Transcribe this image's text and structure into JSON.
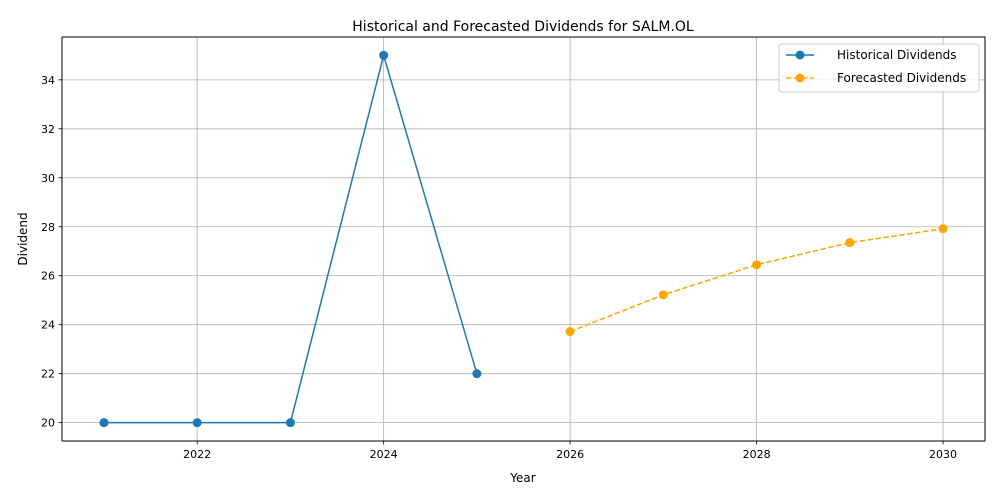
{
  "chart_data": {
    "type": "line",
    "title": "Historical and Forecasted Dividends for SALM.OL",
    "xlabel": "Year",
    "ylabel": "Dividend",
    "xlim": [
      2020.55,
      2030.45
    ],
    "ylim": [
      19.25,
      35.75
    ],
    "x_ticks": [
      2022,
      2024,
      2026,
      2028,
      2030
    ],
    "x_tick_labels": [
      "2022",
      "2024",
      "2026",
      "2028",
      "2030"
    ],
    "y_ticks": [
      20,
      22,
      24,
      26,
      28,
      30,
      32,
      34
    ],
    "y_tick_labels": [
      "20",
      "22",
      "24",
      "26",
      "28",
      "30",
      "32",
      "34"
    ],
    "grid": true,
    "legend_position": "top-right",
    "series": [
      {
        "name": "Historical Dividends",
        "color": "#1f77b4",
        "line_style": "solid",
        "marker": "circle",
        "x": [
          2021,
          2022,
          2023,
          2024,
          2025
        ],
        "y": [
          20.0,
          20.0,
          20.0,
          35.0,
          22.0
        ]
      },
      {
        "name": "Forecasted Dividends",
        "color": "#ffa500",
        "line_style": "dashed",
        "marker": "circle",
        "x": [
          2026,
          2027,
          2028,
          2029,
          2030
        ],
        "y": [
          23.72,
          25.22,
          26.45,
          27.35,
          27.92
        ]
      }
    ]
  }
}
